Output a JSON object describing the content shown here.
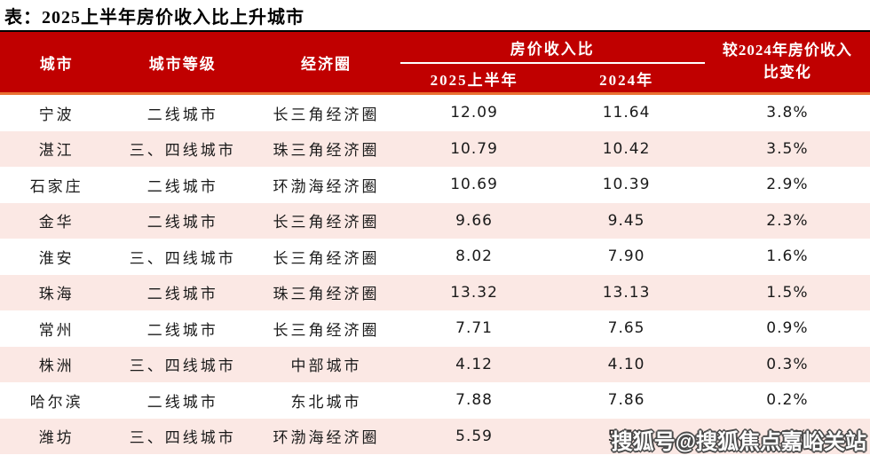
{
  "title": "表：2025上半年房价收入比上升城市",
  "table": {
    "columns": {
      "city": "城市",
      "tier": "城市等级",
      "region": "经济圈",
      "ratio_group": "房价收入比",
      "ratio_2025": "2025上半年",
      "ratio_2024": "2024年",
      "change_line1": "较2024年房价收入",
      "change_line2": "比变化"
    },
    "rows": [
      {
        "city": "宁波",
        "tier": "二线城市",
        "region": "长三角经济圈",
        "ratio_2025": "12.09",
        "ratio_2024": "11.64",
        "change": "3.8%"
      },
      {
        "city": "湛江",
        "tier": "三、四线城市",
        "region": "珠三角经济圈",
        "ratio_2025": "10.79",
        "ratio_2024": "10.42",
        "change": "3.5%"
      },
      {
        "city": "石家庄",
        "tier": "二线城市",
        "region": "环渤海经济圈",
        "ratio_2025": "10.69",
        "ratio_2024": "10.39",
        "change": "2.9%"
      },
      {
        "city": "金华",
        "tier": "二线城市",
        "region": "长三角经济圈",
        "ratio_2025": "9.66",
        "ratio_2024": "9.45",
        "change": "2.3%"
      },
      {
        "city": "淮安",
        "tier": "三、四线城市",
        "region": "长三角经济圈",
        "ratio_2025": "8.02",
        "ratio_2024": "7.90",
        "change": "1.6%"
      },
      {
        "city": "珠海",
        "tier": "二线城市",
        "region": "珠三角经济圈",
        "ratio_2025": "13.32",
        "ratio_2024": "13.13",
        "change": "1.5%"
      },
      {
        "city": "常州",
        "tier": "二线城市",
        "region": "长三角经济圈",
        "ratio_2025": "7.71",
        "ratio_2024": "7.65",
        "change": "0.9%"
      },
      {
        "city": "株洲",
        "tier": "三、四线城市",
        "region": "中部城市",
        "ratio_2025": "4.12",
        "ratio_2024": "4.10",
        "change": "0.3%"
      },
      {
        "city": "哈尔滨",
        "tier": "二线城市",
        "region": "东北城市",
        "ratio_2025": "7.88",
        "ratio_2024": "7.86",
        "change": "0.2%"
      },
      {
        "city": "潍坊",
        "tier": "三、四线城市",
        "region": "环渤海经济圈",
        "ratio_2025": "5.59",
        "ratio_2024": "5.58",
        "change": "0.2%"
      }
    ]
  },
  "watermark": "搜狐号@搜狐焦点嘉峪关站",
  "colors": {
    "header_bg": "#C00000",
    "header_text": "#FFFFFF",
    "top_border": "#000000",
    "divider_orange": "#E97132",
    "row_alt_bg": "#FBE8E4",
    "watermark_fill": "#FFFFFF",
    "watermark_outline": "#4A4A4A"
  }
}
